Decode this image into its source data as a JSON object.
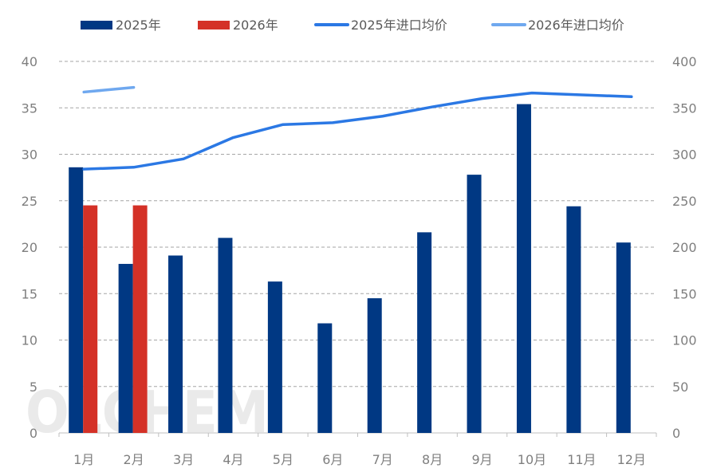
{
  "chart_data": {
    "type": "bar",
    "title": "",
    "watermark": "OLCHEM",
    "categories": [
      "1月",
      "2月",
      "3月",
      "4月",
      "5月",
      "6月",
      "7月",
      "8月",
      "9月",
      "10月",
      "11月",
      "12月"
    ],
    "series": [
      {
        "name": "2025年",
        "kind": "bar",
        "axis": "left",
        "color": "#003883",
        "values": [
          28.6,
          18.2,
          19.1,
          21.0,
          16.3,
          11.8,
          14.5,
          21.6,
          27.8,
          35.4,
          24.4,
          20.5
        ]
      },
      {
        "name": "2026年",
        "kind": "bar",
        "axis": "left",
        "color": "#d43127",
        "values": [
          24.5,
          24.5,
          null,
          null,
          null,
          null,
          null,
          null,
          null,
          null,
          null,
          null
        ]
      },
      {
        "name": "2025年进口均价",
        "kind": "line",
        "axis": "right",
        "color": "#2b78e4",
        "values": [
          284,
          286,
          295,
          318,
          332,
          334,
          341,
          351,
          360,
          366,
          364,
          362
        ]
      },
      {
        "name": "2026年进口均价",
        "kind": "line",
        "axis": "right",
        "color": "#6fa8ef",
        "values": [
          367,
          372,
          null,
          null,
          null,
          null,
          null,
          null,
          null,
          null,
          null,
          null
        ]
      }
    ],
    "y_left": {
      "min": 0,
      "max": 40,
      "ticks": [
        "0",
        "5",
        "10",
        "15",
        "20",
        "25",
        "30",
        "35",
        "40"
      ]
    },
    "y_right": {
      "min": 0,
      "max": 400,
      "ticks": [
        "0",
        "50",
        "100",
        "150",
        "200",
        "250",
        "300",
        "350",
        "400"
      ]
    },
    "grid": true,
    "legend_position": "top"
  }
}
